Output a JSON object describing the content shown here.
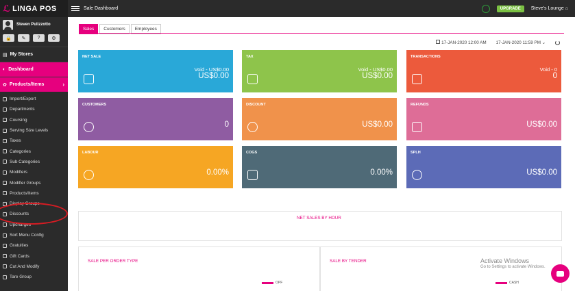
{
  "brand": {
    "logo": "LINGA POS"
  },
  "user": {
    "name": "Steven Pulizzotto"
  },
  "quick_actions": [
    "lock-icon",
    "pen-icon",
    "help-icon",
    "settings-icon"
  ],
  "sidebar": {
    "sections": [
      {
        "label": "My Stores",
        "icon": "store-icon"
      },
      {
        "label": "Dashboard",
        "icon": "dashboard-icon"
      },
      {
        "label": "Products/Items",
        "icon": "products-icon"
      }
    ],
    "items": [
      "Import/Export",
      "Departments",
      "Coursing",
      "Serving Size Levels",
      "Taxes",
      "Categories",
      "Sub Categories",
      "Modifiers",
      "Modifier Groups",
      "Products/Items",
      "Display Groups",
      "Discounts",
      "Upcharges",
      "Sort Menu Config",
      "Gratuities",
      "Gift Cards",
      "Cut And Modify",
      "Tare Group"
    ]
  },
  "topbar": {
    "title": "Sale Dashboard",
    "upgrade": "UPGRADE",
    "store": "Steve's Lounge"
  },
  "tabs": [
    "Sales",
    "Customers",
    "Employees"
  ],
  "dates": {
    "from": "17-JAN-2020 12:00 AM",
    "to": "17-JAN-2020 11:59 PM"
  },
  "cards": [
    {
      "title": "NET SALE",
      "void": "Void - US$0.00",
      "value": "US$0.00",
      "color": "#29a8d8"
    },
    {
      "title": "TAX",
      "void": "Void - US$0.00",
      "value": "US$0.00",
      "color": "#8ec44b"
    },
    {
      "title": "TRANSACTIONS",
      "void": "Void - 0",
      "value": "0",
      "color": "#ec5a3c"
    },
    {
      "title": "CUSTOMERS",
      "value": "0",
      "color": "#8f5ca2"
    },
    {
      "title": "DISCOUNT",
      "value": "US$0.00",
      "color": "#f0924b"
    },
    {
      "title": "REFUNDS",
      "value": "US$0.00",
      "color": "#de6d97"
    },
    {
      "title": "LABOUR",
      "value": "0.00%",
      "color": "#f6a623"
    },
    {
      "title": "COGS",
      "value": "0.00%",
      "color": "#4f6a77"
    },
    {
      "title": "SPLH",
      "value": "US$0.00",
      "color": "#5c6bb7"
    }
  ],
  "panels": {
    "net_sales_hour": "NET SALES BY HOUR",
    "sale_per_order_type": "SALE PER ORDER TYPE",
    "sale_by_tender": "SALE BY TENDER",
    "legend_left": "OPF",
    "legend_right": "CASH"
  },
  "watermark": {
    "title": "Activate Windows",
    "subtitle": "Go to Settings to activate Windows."
  }
}
